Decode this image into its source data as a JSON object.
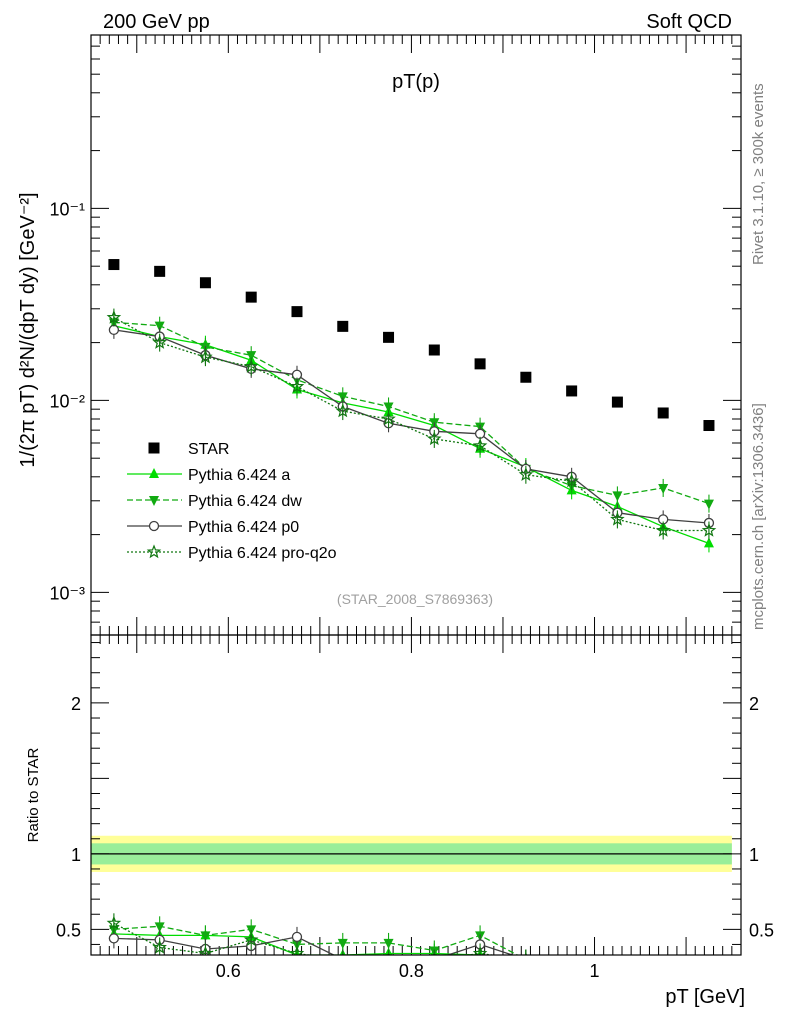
{
  "header": {
    "left": "200 GeV pp",
    "right": "Soft QCD"
  },
  "side_labels": {
    "top": "Rivet 3.1.10, ≥ 300k events",
    "bottom": "mcplots.cern.ch [arXiv:1306.3436]"
  },
  "reference": "(STAR_2008_S7869363)",
  "chart_data": [
    {
      "type": "line",
      "panel": "main",
      "title": "pT(p)",
      "ylabel": "1/(2π pT) d²N/(dpT dy) [GeV⁻²]",
      "yscale": "log",
      "ylim": [
        0.0006,
        0.8
      ],
      "xlim": [
        0.45,
        1.16
      ],
      "y_tick_labels": [
        {
          "value": 0.1,
          "label": "10⁻¹"
        },
        {
          "value": 0.01,
          "label": "10⁻²"
        },
        {
          "value": 0.001,
          "label": "10⁻³"
        }
      ],
      "legend_position": "lower-left",
      "x": [
        0.475,
        0.525,
        0.575,
        0.625,
        0.675,
        0.725,
        0.775,
        0.825,
        0.875,
        0.925,
        0.975,
        1.025,
        1.075,
        1.125
      ],
      "series": [
        {
          "name": "STAR",
          "style": "square",
          "color": "#000000",
          "values": [
            0.051,
            0.047,
            0.041,
            0.0345,
            0.029,
            0.0243,
            0.0213,
            0.0183,
            0.0155,
            0.0132,
            0.0112,
            0.0098,
            0.0086,
            0.0074
          ]
        },
        {
          "name": "Pythia 6.424 a",
          "style": "triangle-up",
          "line": "solid",
          "color": "#00dd00",
          "values": [
            0.0245,
            0.0215,
            0.0195,
            0.0162,
            0.0114,
            0.0097,
            0.0087,
            0.0074,
            0.0056,
            0.0045,
            0.0034,
            0.0028,
            0.0022,
            0.0018
          ]
        },
        {
          "name": "Pythia 6.424 dw",
          "style": "triangle-down",
          "line": "dashed",
          "color": "#11aa11",
          "values": [
            0.0255,
            0.0245,
            0.019,
            0.0172,
            0.0128,
            0.0105,
            0.0093,
            0.0077,
            0.0073,
            0.0044,
            0.0036,
            0.0032,
            0.0035,
            0.0029
          ]
        },
        {
          "name": "Pythia 6.424 p0",
          "style": "circle",
          "line": "solid",
          "color": "#404040",
          "values": [
            0.0233,
            0.0215,
            0.0172,
            0.0146,
            0.0136,
            0.0093,
            0.0076,
            0.0069,
            0.0067,
            0.0044,
            0.004,
            0.0026,
            0.0024,
            0.0023
          ]
        },
        {
          "name": "Pythia 6.424 pro-q2o",
          "style": "star",
          "line": "dotted",
          "color": "#117711",
          "values": [
            0.027,
            0.02,
            0.0168,
            0.015,
            0.0118,
            0.0088,
            0.008,
            0.0063,
            0.0058,
            0.0041,
            0.0038,
            0.0024,
            0.0021,
            0.0021
          ]
        }
      ]
    },
    {
      "type": "line",
      "panel": "ratio",
      "ylabel": "Ratio to STAR",
      "xlabel": "pT [GeV]",
      "ylim": [
        0.33,
        2.45
      ],
      "xlim": [
        0.45,
        1.16
      ],
      "x_tick_labels": [
        {
          "value": 0.6,
          "label": "0.6"
        },
        {
          "value": 0.8,
          "label": "0.8"
        },
        {
          "value": 1.0,
          "label": "1"
        }
      ],
      "y_tick_labels": [
        {
          "value": 0.5,
          "label": "0.5"
        },
        {
          "value": 1,
          "label": "1"
        },
        {
          "value": 2,
          "label": "2"
        }
      ],
      "band": {
        "inner": [
          0.93,
          1.07
        ],
        "outer": [
          0.88,
          1.12
        ]
      },
      "x": [
        0.475,
        0.525,
        0.575,
        0.625,
        0.675,
        0.725,
        0.775,
        0.825,
        0.875,
        0.925
      ],
      "series": [
        {
          "name": "Pythia 6.424 a",
          "values": [
            0.47,
            0.46,
            0.46,
            0.45,
            0.33,
            0.33,
            0.34,
            0.34,
            0.33,
            0.3
          ]
        },
        {
          "name": "Pythia 6.424 dw",
          "values": [
            0.5,
            0.52,
            0.46,
            0.5,
            0.4,
            0.41,
            0.41,
            0.36,
            0.46,
            0.3
          ]
        },
        {
          "name": "Pythia 6.424 p0",
          "values": [
            0.44,
            0.43,
            0.37,
            0.39,
            0.45,
            0.3,
            0.3,
            0.3,
            0.4,
            0.3
          ]
        },
        {
          "name": "Pythia 6.424 pro-q2o",
          "values": [
            0.54,
            0.38,
            0.34,
            0.43,
            0.34,
            0.3,
            0.3,
            0.3,
            0.34,
            0.3
          ]
        }
      ]
    }
  ]
}
